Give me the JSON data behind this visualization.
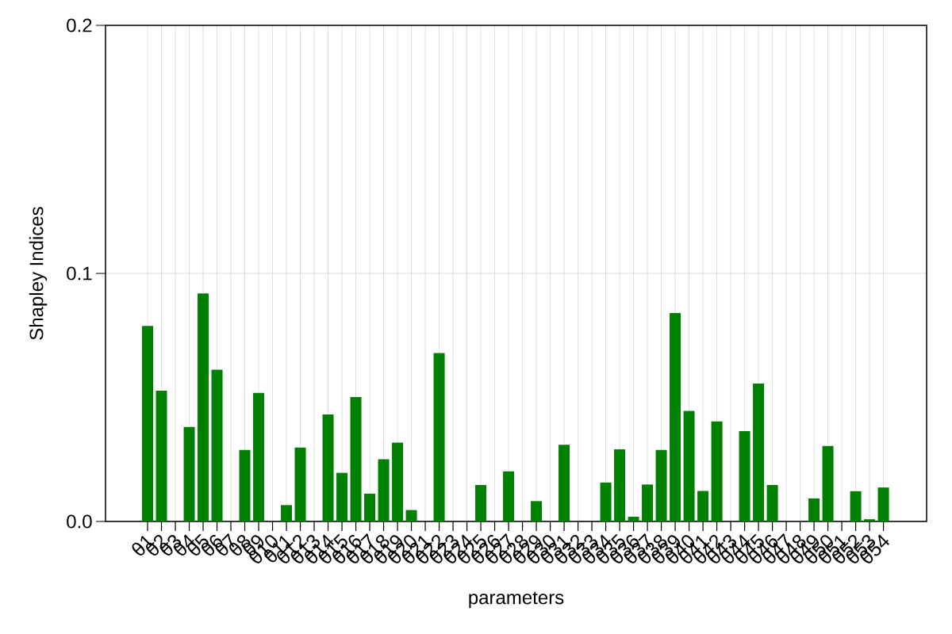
{
  "chart_data": {
    "type": "bar",
    "xlabel": "parameters",
    "ylabel": "Shapley Indices",
    "categories": [
      "θ1",
      "θ2",
      "θ3",
      "θ4",
      "θ5",
      "θ6",
      "θ7",
      "θ8",
      "θ9",
      "θ10",
      "θ11",
      "θ12",
      "θ13",
      "θ14",
      "θ15",
      "θ16",
      "θ17",
      "θ18",
      "θ19",
      "θ20",
      "θ21",
      "θ22",
      "θ23",
      "θ24",
      "θ25",
      "θ26",
      "θ27",
      "θ28",
      "θ29",
      "θ30",
      "θ31",
      "θ32",
      "θ33",
      "θ34",
      "θ35",
      "θ36",
      "θ37",
      "θ38",
      "θ39",
      "θ40",
      "θ41",
      "θ42",
      "θ43",
      "θ44",
      "θ45",
      "θ46",
      "θ47",
      "θ48",
      "θ49",
      "θ50",
      "θ51",
      "θ52",
      "θ53",
      "θ54"
    ],
    "values": [
      0.0788,
      0.0527,
      0,
      0.0381,
      0.0919,
      0.0612,
      0,
      0.0288,
      0.0518,
      0,
      0.0066,
      0.0298,
      0,
      0.0431,
      0.0196,
      0.0502,
      0.0112,
      0.0251,
      0.0318,
      0.0046,
      0,
      0.0679,
      0,
      0,
      0.0147,
      0,
      0.0202,
      0,
      0.0082,
      0,
      0.0309,
      0,
      0,
      0.0157,
      0.0291,
      0.0019,
      0.0149,
      0.0288,
      0.084,
      0.0446,
      0.0123,
      0.0403,
      0,
      0.0364,
      0.0556,
      0.0147,
      0,
      0,
      0.0093,
      0.0304,
      0,
      0.0122,
      0.0009,
      0.0137
    ],
    "color": "#008000",
    "ylim": [
      0,
      0.2
    ],
    "yticks": [
      {
        "value": 0,
        "label": "0.0"
      },
      0.1,
      0.2
    ],
    "grid": true
  }
}
